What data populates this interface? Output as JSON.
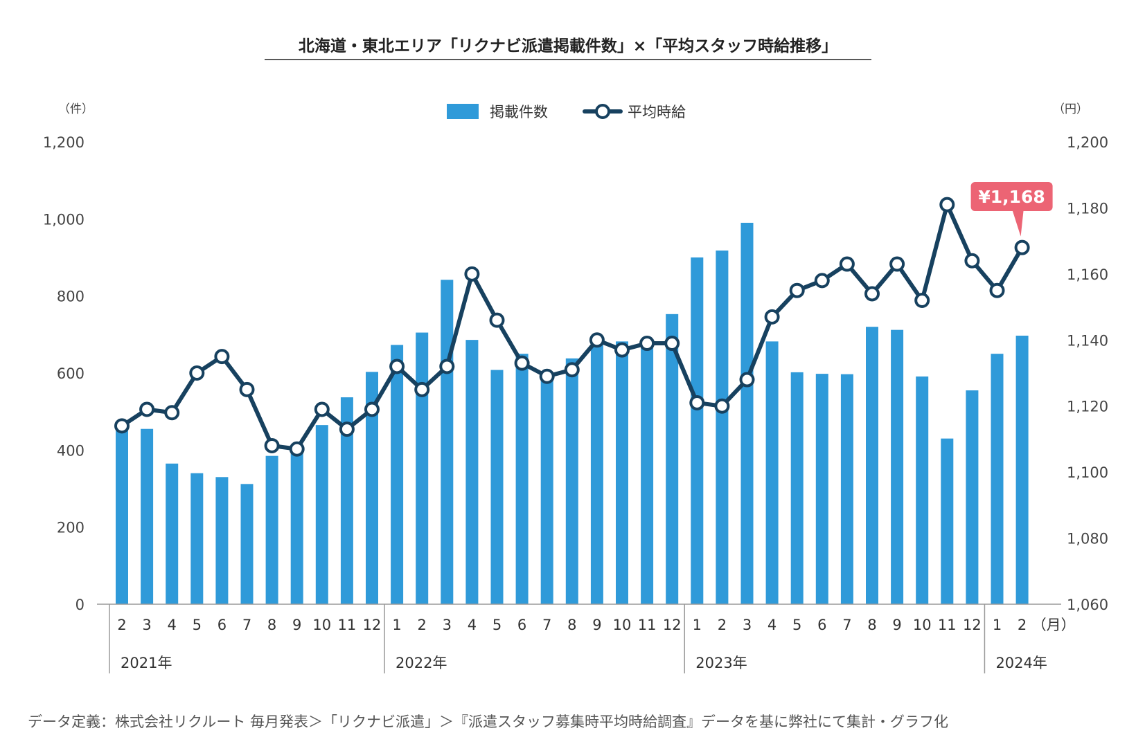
{
  "chart_data": {
    "type": "bar+line",
    "title": "北海道・東北エリア「リクナビ派遣掲載件数」×「平均スタッフ時給推移」",
    "left_axis": {
      "unit": "（件）",
      "ylim": [
        0,
        1200
      ],
      "ticks": [
        "0",
        "200",
        "400",
        "600",
        "800",
        "1,000",
        "1,200"
      ],
      "tick_values": [
        0,
        200,
        400,
        600,
        800,
        1000,
        1200
      ]
    },
    "right_axis": {
      "unit": "（円）",
      "ylim": [
        1060,
        1200
      ],
      "ticks": [
        "1,060",
        "1,080",
        "1,100",
        "1,120",
        "1,140",
        "1,160",
        "1,180",
        "1,200"
      ],
      "tick_values": [
        1060,
        1080,
        1100,
        1120,
        1140,
        1160,
        1180,
        1200
      ]
    },
    "x_unit": "（月）",
    "categories": [
      "2",
      "3",
      "4",
      "5",
      "6",
      "7",
      "8",
      "9",
      "10",
      "11",
      "12",
      "1",
      "2",
      "3",
      "4",
      "5",
      "6",
      "7",
      "8",
      "9",
      "10",
      "11",
      "12",
      "1",
      "2",
      "3",
      "4",
      "5",
      "6",
      "7",
      "8",
      "9",
      "10",
      "11",
      "12",
      "1",
      "2"
    ],
    "years": [
      {
        "label": "2021年",
        "start": 0,
        "end": 10
      },
      {
        "label": "2022年",
        "start": 11,
        "end": 22
      },
      {
        "label": "2023年",
        "start": 23,
        "end": 34
      },
      {
        "label": "2024年",
        "start": 35,
        "end": 36
      }
    ],
    "series": [
      {
        "name": "掲載件数",
        "type": "bar",
        "axis": "left",
        "color": "#2f9ad9",
        "values": [
          465,
          455,
          365,
          340,
          330,
          312,
          385,
          400,
          465,
          537,
          603,
          673,
          705,
          842,
          686,
          608,
          650,
          585,
          638,
          673,
          682,
          685,
          753,
          900,
          918,
          990,
          682,
          602,
          598,
          597,
          720,
          712,
          591,
          430,
          555,
          650,
          697
        ]
      },
      {
        "name": "平均時給",
        "type": "line",
        "axis": "right",
        "color": "#17415f",
        "values": [
          1114,
          1119,
          1118,
          1130,
          1135,
          1125,
          1108,
          1107,
          1119,
          1113,
          1119,
          1132,
          1125,
          1132,
          1160,
          1146,
          1133,
          1129,
          1131,
          1140,
          1137,
          1139,
          1139,
          1121,
          1120,
          1128,
          1147,
          1155,
          1158,
          1163,
          1154,
          1163,
          1152,
          1181,
          1164,
          1155,
          1168
        ]
      }
    ],
    "callout": {
      "text": "¥1,168",
      "index": 36,
      "color": "#ec6474"
    },
    "colors": {
      "bar": "#2f9ad9",
      "line": "#17415f",
      "axis": "#9a9a9a",
      "callout": "#ec6474"
    },
    "legend_placement": "top-center",
    "grid": false
  },
  "footnote": "データ定義：株式会社リクルート 毎月発表＞「リクナビ派遣」＞『派遣スタッフ募集時平均時給調査』データを基に弊社にて集計・グラフ化"
}
